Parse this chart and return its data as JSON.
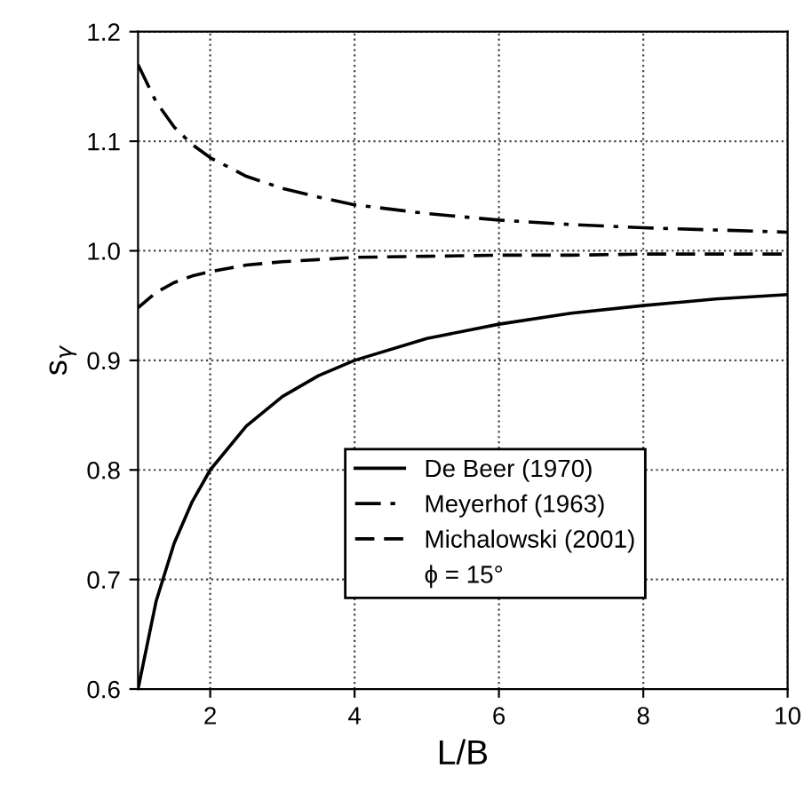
{
  "chart_data": {
    "type": "line",
    "xlabel": "L/B",
    "ylabel": "s$_{γ}$",
    "xlim": [
      1,
      10
    ],
    "xticks": [
      2,
      4,
      6,
      8,
      10
    ],
    "ylim": [
      0.6,
      1.2
    ],
    "yticks": [
      0.6,
      0.7,
      0.8,
      0.9,
      {
        "value": 1,
        "label": "1.0"
      },
      1.1,
      1.2
    ],
    "grid": true,
    "legend": "bottom right",
    "annotations": [
      "ϕ = 15°"
    ],
    "x": [
      1,
      1.25,
      1.5,
      1.75,
      2,
      2.5,
      3,
      3.5,
      4,
      5,
      6,
      7,
      8,
      9,
      10
    ],
    "series": [
      {
        "name": "De Beer (1970)",
        "color": "#000000",
        "line_style": "solid",
        "values": [
          0.6,
          0.68,
          0.733,
          0.771,
          0.8,
          0.84,
          0.867,
          0.886,
          0.9,
          0.92,
          0.933,
          0.943,
          0.95,
          0.956,
          0.96
        ]
      },
      {
        "name": "Meyerhof (1963)",
        "color": "#000000",
        "line_style": "dashdot",
        "values": [
          1.17,
          1.136,
          1.113,
          1.097,
          1.085,
          1.068,
          1.057,
          1.049,
          1.042,
          1.034,
          1.028,
          1.024,
          1.021,
          1.019,
          1.017
        ]
      },
      {
        "name": "Michalowski (2001)",
        "color": "#000000",
        "line_style": "dashed",
        "values": [
          0.948,
          0.962,
          0.971,
          0.977,
          0.981,
          0.987,
          0.99,
          0.992,
          0.994,
          0.995,
          0.996,
          0.996,
          0.997,
          0.997,
          0.997
        ]
      }
    ]
  }
}
